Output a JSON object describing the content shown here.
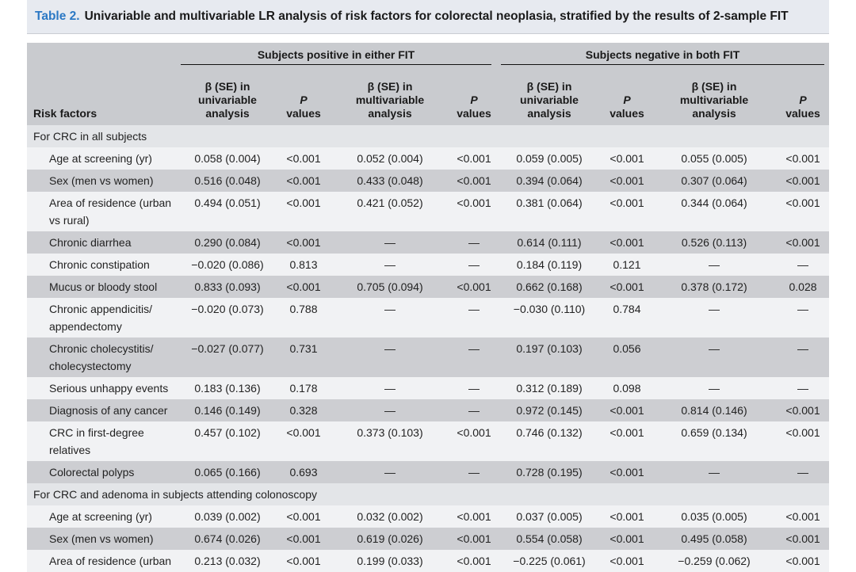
{
  "title": {
    "label": "Table 2.",
    "text": "Univariable and multivariable LR analysis of risk factors for colorectal neoplasia, stratified by the results of 2-sample FIT"
  },
  "header": {
    "group1": "Subjects positive in either FIT",
    "group2": "Subjects negative in both FIT",
    "risk_factors": "Risk factors",
    "beta": "β (SE) in",
    "univariable": "univariable analysis",
    "multivariable": "multivariable",
    "analysis": "analysis",
    "p": "P",
    "values": "values"
  },
  "sections": [
    {
      "title": "For CRC in all subjects",
      "rows": [
        {
          "name": "Age at screening (yr)",
          "v": [
            "0.058 (0.004)",
            "<0.001",
            "0.052 (0.004)",
            "<0.001",
            "0.059 (0.005)",
            "<0.001",
            "0.055 (0.005)",
            "<0.001"
          ]
        },
        {
          "name": "Sex (men vs women)",
          "v": [
            "0.516 (0.048)",
            "<0.001",
            "0.433 (0.048)",
            "<0.001",
            "0.394 (0.064)",
            "<0.001",
            "0.307 (0.064)",
            "<0.001"
          ]
        },
        {
          "name": "Area of residence (urban vs rural)",
          "v": [
            "0.494 (0.051)",
            "<0.001",
            "0.421 (0.052)",
            "<0.001",
            "0.381 (0.064)",
            "<0.001",
            "0.344 (0.064)",
            "<0.001"
          ]
        },
        {
          "name": "Chronic diarrhea",
          "v": [
            "0.290 (0.084)",
            "<0.001",
            "—",
            "—",
            "0.614 (0.111)",
            "<0.001",
            "0.526 (0.113)",
            "<0.001"
          ]
        },
        {
          "name": "Chronic constipation",
          "v": [
            "−0.020 (0.086)",
            "0.813",
            "—",
            "—",
            "0.184 (0.119)",
            "0.121",
            "—",
            "—"
          ]
        },
        {
          "name": "Mucus or bloody stool",
          "v": [
            "0.833 (0.093)",
            "<0.001",
            "0.705 (0.094)",
            "<0.001",
            "0.662 (0.168)",
            "<0.001",
            "0.378 (0.172)",
            "0.028"
          ]
        },
        {
          "name": "Chronic appendicitis/ appendectomy",
          "v": [
            "−0.020 (0.073)",
            "0.788",
            "—",
            "—",
            "−0.030 (0.110)",
            "0.784",
            "—",
            "—"
          ]
        },
        {
          "name": "Chronic cholecystitis/ cholecystectomy",
          "v": [
            "−0.027 (0.077)",
            "0.731",
            "—",
            "—",
            "0.197 (0.103)",
            "0.056",
            "—",
            "—"
          ]
        },
        {
          "name": "Serious unhappy events",
          "v": [
            "0.183 (0.136)",
            "0.178",
            "—",
            "—",
            "0.312 (0.189)",
            "0.098",
            "—",
            "—"
          ]
        },
        {
          "name": "Diagnosis of any cancer",
          "v": [
            "0.146 (0.149)",
            "0.328",
            "—",
            "—",
            "0.972 (0.145)",
            "<0.001",
            "0.814 (0.146)",
            "<0.001"
          ]
        },
        {
          "name": "CRC in first-degree relatives",
          "v": [
            "0.457 (0.102)",
            "<0.001",
            "0.373 (0.103)",
            "<0.001",
            "0.746 (0.132)",
            "<0.001",
            "0.659 (0.134)",
            "<0.001"
          ]
        },
        {
          "name": "Colorectal polyps",
          "v": [
            "0.065 (0.166)",
            "0.693",
            "—",
            "—",
            "0.728 (0.195)",
            "<0.001",
            "—",
            "—"
          ]
        }
      ]
    },
    {
      "title": "For CRC and adenoma in subjects attending colonoscopy",
      "rows": [
        {
          "name": "Age at screening (yr)",
          "v": [
            "0.039 (0.002)",
            "<0.001",
            "0.032 (0.002)",
            "<0.001",
            "0.037 (0.005)",
            "<0.001",
            "0.035 (0.005)",
            "<0.001"
          ]
        },
        {
          "name": "Sex (men vs women)",
          "v": [
            "0.674 (0.026)",
            "<0.001",
            "0.619 (0.026)",
            "<0.001",
            "0.554 (0.058)",
            "<0.001",
            "0.495 (0.058)",
            "<0.001"
          ]
        },
        {
          "name": "Area of residence (urban",
          "v": [
            "0.213 (0.032)",
            "<0.001",
            "0.199 (0.033)",
            "<0.001",
            "−0.225 (0.061)",
            "<0.001",
            "−0.259 (0.062)",
            "<0.001"
          ]
        }
      ]
    }
  ]
}
